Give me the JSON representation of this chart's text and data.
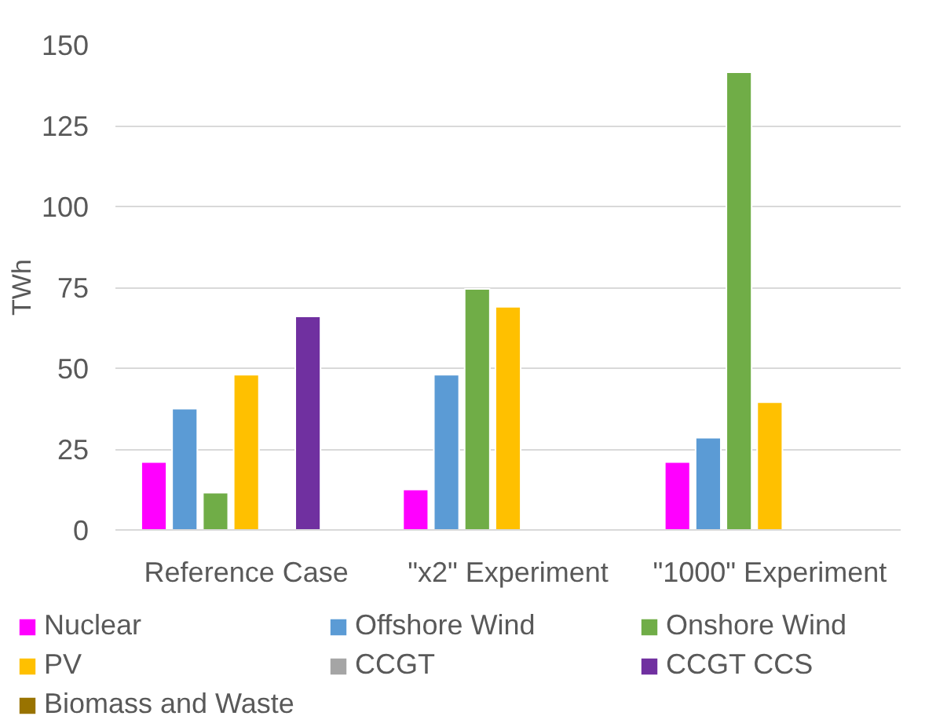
{
  "chart_data": {
    "type": "bar",
    "ylabel": "TWh",
    "categories": [
      "Reference Case",
      "\"x2\" Experiment",
      "\"1000\" Experiment"
    ],
    "series": [
      {
        "name": "Nuclear",
        "color": "#ff00ff",
        "values": [
          21,
          12.5,
          21
        ]
      },
      {
        "name": "Offshore Wind",
        "color": "#5b9bd5",
        "values": [
          37.5,
          48,
          28.5
        ]
      },
      {
        "name": "Onshore Wind",
        "color": "#70ad47",
        "values": [
          11.5,
          74.5,
          141.5
        ]
      },
      {
        "name": "PV",
        "color": "#ffc000",
        "values": [
          48,
          69,
          39.5
        ]
      },
      {
        "name": "CCGT",
        "color": "#a5a5a5",
        "values": [
          null,
          null,
          null
        ]
      },
      {
        "name": "CCGT CCS",
        "color": "#7030a0",
        "values": [
          66,
          null,
          null
        ]
      },
      {
        "name": "Biomass and Waste",
        "color": "#997300",
        "values": [
          null,
          null,
          null
        ]
      }
    ],
    "ylim": [
      0,
      150
    ],
    "yticks": [
      0,
      25,
      50,
      75,
      100,
      125,
      150
    ],
    "grid": "y",
    "legend": "bottom"
  }
}
